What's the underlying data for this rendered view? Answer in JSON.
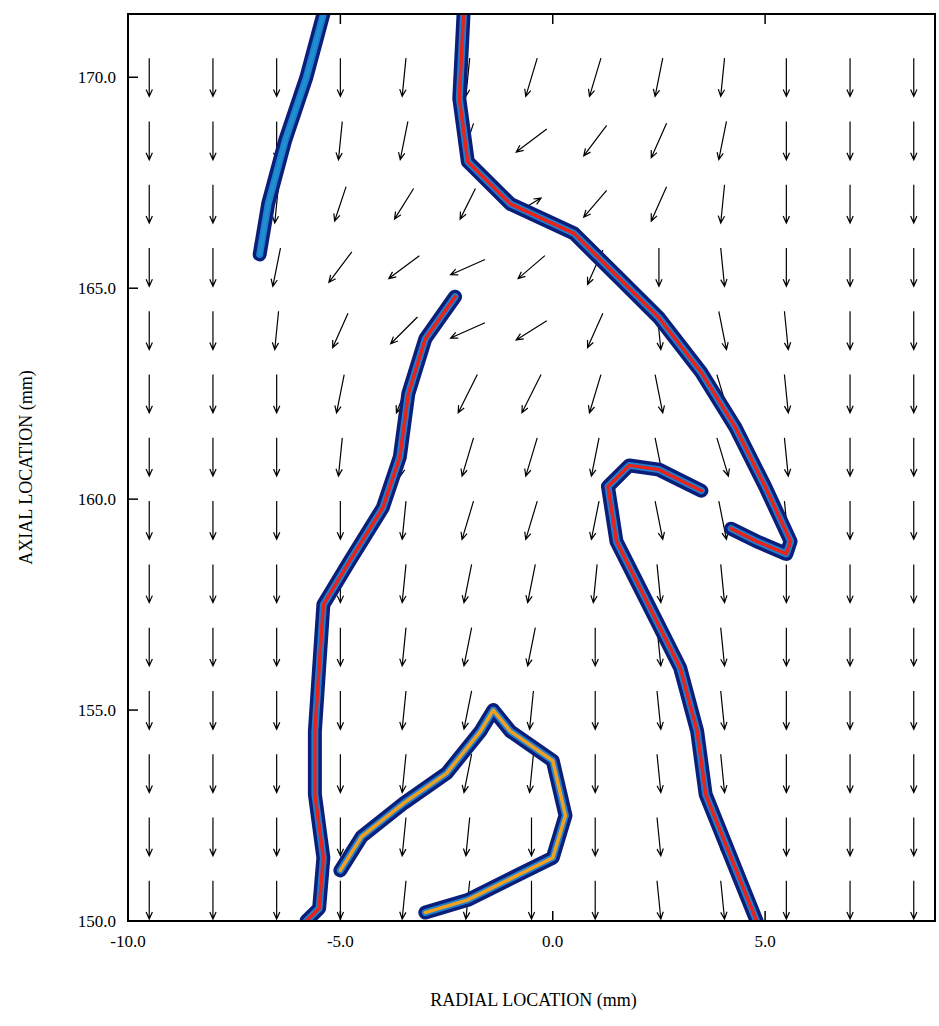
{
  "chart_data": {
    "type": "vector",
    "xlabel": "RADIAL LOCATION (mm)",
    "ylabel": "AXIAL LOCATION (mm)",
    "xlim": [
      -10,
      9
    ],
    "ylim": [
      150,
      171.5
    ],
    "xticks": [
      {
        "value": -10,
        "label": "-10.0"
      },
      {
        "value": -5,
        "label": "-5.0"
      },
      {
        "value": 0,
        "label": "0.0"
      },
      {
        "value": 5,
        "label": "5.0"
      }
    ],
    "yticks": [
      {
        "value": 150,
        "label": "150.0"
      },
      {
        "value": 155,
        "label": "155.0"
      },
      {
        "value": 160,
        "label": "160.0"
      },
      {
        "value": 165,
        "label": "165.0"
      },
      {
        "value": 170,
        "label": "170.0"
      }
    ],
    "vectors": {
      "color": "#000000",
      "x": [
        -9.5,
        -8,
        -6.5,
        -5,
        -3.5,
        -2,
        -0.5,
        1,
        2.5,
        4,
        5.5,
        7,
        8.5
      ],
      "y": [
        150.5,
        152,
        153.5,
        155,
        156.5,
        158,
        159.5,
        161,
        162.5,
        164,
        165.5,
        167,
        168.5,
        170
      ],
      "u": [
        [
          0,
          0,
          0,
          0,
          -0.1,
          -0.1,
          0,
          0,
          0.1,
          0.1,
          0,
          0,
          0
        ],
        [
          0,
          0,
          0,
          0,
          -0.1,
          -0.1,
          0,
          0,
          0.1,
          0.1,
          0,
          0,
          0
        ],
        [
          0,
          0,
          0,
          0,
          -0.1,
          -0.2,
          -0.1,
          0,
          0.1,
          0.1,
          0,
          0,
          0
        ],
        [
          0,
          0,
          0,
          0,
          -0.1,
          -0.2,
          -0.1,
          0,
          0.1,
          0.1,
          0,
          0,
          0
        ],
        [
          0,
          0,
          0,
          0,
          -0.1,
          -0.2,
          -0.2,
          0,
          0.1,
          0.1,
          0,
          0,
          0
        ],
        [
          0,
          0,
          0,
          0,
          -0.1,
          -0.2,
          -0.2,
          -0.1,
          0.1,
          0.1,
          0,
          0,
          0
        ],
        [
          0,
          0,
          0,
          0,
          -0.1,
          -0.3,
          -0.3,
          -0.2,
          0.2,
          0.2,
          0.1,
          0,
          0
        ],
        [
          0,
          0,
          0,
          -0.1,
          -0.2,
          -0.3,
          -0.3,
          -0.2,
          0.2,
          0.3,
          0.1,
          0,
          0
        ],
        [
          0,
          0,
          0,
          -0.2,
          -0.4,
          -0.5,
          -0.5,
          -0.3,
          0.2,
          0.3,
          0.1,
          0,
          0
        ],
        [
          0,
          0,
          -0.1,
          -0.4,
          -0.7,
          -0.9,
          -0.8,
          -0.4,
          0.1,
          0.2,
          0.1,
          0,
          0
        ],
        [
          0,
          0,
          -0.2,
          -0.6,
          -0.8,
          -0.9,
          -0.7,
          -0.4,
          0,
          0.1,
          0,
          0,
          0
        ],
        [
          0,
          0,
          -0.1,
          -0.3,
          -0.5,
          -0.4,
          0.5,
          -0.6,
          -0.4,
          -0.1,
          0,
          0,
          0
        ],
        [
          0,
          0,
          0,
          -0.1,
          -0.2,
          -0.3,
          -0.8,
          -0.6,
          -0.4,
          -0.2,
          0,
          0,
          0
        ],
        [
          0,
          0,
          0,
          0,
          -0.1,
          -0.1,
          -0.3,
          -0.3,
          -0.2,
          -0.1,
          0,
          0,
          0
        ]
      ],
      "v": [
        [
          -1,
          -1,
          -1,
          -1,
          -1,
          -1,
          -1,
          -1,
          -1,
          -1,
          -1,
          -1,
          -1
        ],
        [
          -1,
          -1,
          -1,
          -1,
          -1,
          -1,
          -1,
          -1,
          -1,
          -1,
          -1,
          -1,
          -1
        ],
        [
          -1,
          -1,
          -1,
          -1,
          -1,
          -1,
          -1,
          -1,
          -1,
          -1,
          -1,
          -1,
          -1
        ],
        [
          -1,
          -1,
          -1,
          -1,
          -1,
          -1,
          -1,
          -1,
          -1,
          -1,
          -1,
          -1,
          -1
        ],
        [
          -1,
          -1,
          -1,
          -1,
          -1,
          -1,
          -1,
          -1,
          -1,
          -1,
          -1,
          -1,
          -1
        ],
        [
          -1,
          -1,
          -1,
          -1,
          -1,
          -1,
          -1,
          -1,
          -1,
          -1,
          -1,
          -1,
          -1
        ],
        [
          -1,
          -1,
          -1,
          -1,
          -1,
          -1,
          -1,
          -1,
          -1,
          -1,
          -1,
          -1,
          -1
        ],
        [
          -1,
          -1,
          -1,
          -1,
          -1,
          -1,
          -1,
          -1,
          -1,
          -1,
          -1,
          -1,
          -1
        ],
        [
          -1,
          -1,
          -1,
          -1,
          -1,
          -1,
          -1,
          -1,
          -1,
          -1,
          -1,
          -1,
          -1
        ],
        [
          -1,
          -1,
          -1,
          -0.9,
          -0.7,
          -0.4,
          -0.5,
          -0.9,
          -1,
          -1,
          -1,
          -1,
          -1
        ],
        [
          -1,
          -1,
          -1,
          -0.8,
          -0.6,
          -0.4,
          -0.6,
          -0.9,
          -1,
          -1,
          -1,
          -1,
          -1
        ],
        [
          -1,
          -1,
          -1,
          -0.9,
          -0.8,
          -0.8,
          0.3,
          -0.7,
          -0.9,
          -1,
          -1,
          -1,
          -1
        ],
        [
          -1,
          -1,
          -1,
          -1,
          -1,
          -0.9,
          -0.6,
          -0.8,
          -0.9,
          -1,
          -1,
          -1,
          -1
        ],
        [
          -1,
          -1,
          -1,
          -1,
          -1,
          -1,
          -1,
          -1,
          -1,
          -1,
          -1,
          -1,
          -1
        ]
      ]
    },
    "series": [
      {
        "type": "line",
        "color": "#1e90d0",
        "x": [
          -5.4,
          -5.8,
          -6.3,
          -6.7,
          -6.9
        ],
        "values": [
          171.5,
          170,
          168.5,
          167,
          165.8
        ]
      },
      {
        "type": "line",
        "color": "#e8231a",
        "x": [
          -2.1,
          -2.2,
          -2,
          -1,
          0.5,
          1.5,
          2.5,
          3.5,
          4.3,
          5,
          5.6,
          5.5,
          4.8,
          4.2
        ],
        "values": [
          171.5,
          169.5,
          168,
          167,
          166.3,
          165.3,
          164.3,
          163,
          161.7,
          160.3,
          159,
          158.7,
          159,
          159.3
        ]
      },
      {
        "type": "line",
        "color": "#e8231a",
        "x": [
          3.5,
          2.5,
          1.8,
          1.3,
          1.5,
          2,
          2.5,
          3,
          3.4,
          3.6,
          4,
          4.4,
          4.8
        ],
        "values": [
          160.2,
          160.7,
          160.8,
          160.3,
          159,
          158,
          157,
          156,
          154.5,
          153,
          152,
          151,
          150
        ]
      },
      {
        "type": "line",
        "color": "#e8231a",
        "x": [
          -2.3,
          -3,
          -3.4,
          -3.6,
          -4,
          -4.8,
          -5.4,
          -5.5,
          -5.6,
          -5.6,
          -5.4,
          -5.5,
          -5.8
        ],
        "values": [
          164.8,
          163.8,
          162.5,
          161,
          159.8,
          158.5,
          157.5,
          156,
          154.5,
          153,
          151.5,
          150.3,
          150
        ]
      },
      {
        "type": "line",
        "color": "#f0a020",
        "x": [
          -5,
          -4.5,
          -3.5,
          -2.5,
          -1.7,
          -1.4,
          -1,
          0,
          0.3,
          0,
          -1,
          -2,
          -3
        ],
        "values": [
          151.2,
          152,
          152.8,
          153.5,
          154.5,
          155,
          154.5,
          153.8,
          152.5,
          151.5,
          151,
          150.5,
          150.2
        ]
      }
    ]
  }
}
